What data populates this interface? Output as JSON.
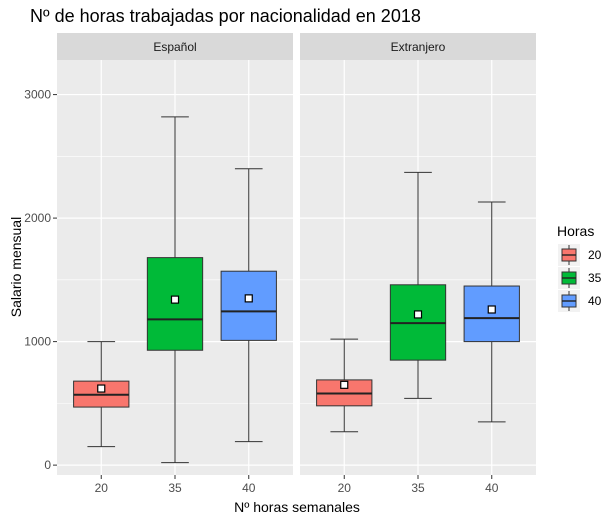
{
  "chart_data": {
    "type": "box",
    "title": "Nº de horas trabajadas por nacionalidad en 2018",
    "xlabel": "Nº horas semanales",
    "ylabel": "Salario mensual",
    "ylim": [
      -80,
      3280
    ],
    "yticks": [
      0,
      1000,
      2000,
      3000
    ],
    "categories": [
      "20",
      "35",
      "40"
    ],
    "legend": {
      "title": "Horas",
      "position": "right",
      "entries": [
        "20",
        "35",
        "40"
      ]
    },
    "colors": [
      "#F8766D",
      "#00BA38",
      "#619CFF"
    ],
    "facets": [
      {
        "label": "Español",
        "boxes": [
          {
            "category": "20",
            "whisker_low": 150,
            "q1": 470,
            "median": 570,
            "q3": 680,
            "whisker_high": 1000,
            "mean": 620
          },
          {
            "category": "35",
            "whisker_low": 20,
            "q1": 930,
            "median": 1180,
            "q3": 1680,
            "whisker_high": 2820,
            "mean": 1340
          },
          {
            "category": "40",
            "whisker_low": 190,
            "q1": 1010,
            "median": 1245,
            "q3": 1570,
            "whisker_high": 2400,
            "mean": 1350
          }
        ]
      },
      {
        "label": "Extranjero",
        "boxes": [
          {
            "category": "20",
            "whisker_low": 270,
            "q1": 480,
            "median": 580,
            "q3": 690,
            "whisker_high": 1020,
            "mean": 650
          },
          {
            "category": "35",
            "whisker_low": 540,
            "q1": 850,
            "median": 1150,
            "q3": 1460,
            "whisker_high": 2370,
            "mean": 1220
          },
          {
            "category": "40",
            "whisker_low": 350,
            "q1": 1000,
            "median": 1190,
            "q3": 1450,
            "whisker_high": 2130,
            "mean": 1260
          }
        ]
      }
    ]
  }
}
